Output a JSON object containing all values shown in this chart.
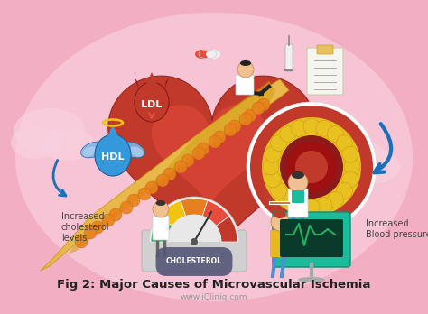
{
  "title": "Fig 2: Major Causes of Microvascular Ischemia",
  "subtitle": "www.iCliniq.com",
  "bg_color": "#f2afc4",
  "card_color": "#f7c8d8",
  "title_color": "#222222",
  "subtitle_color": "#999999",
  "left_label_line1": "Increased",
  "left_label_line2": "cholesterol",
  "left_label_line3": "levels",
  "right_label_line1": "Increased",
  "right_label_line2": "Blood pressure",
  "ldl_label": "LDL",
  "hdl_label": "HDL",
  "cholesterol_label": "CHOLESTEROL",
  "heart_color": "#c0392b",
  "heart_dark": "#922b21",
  "ldl_color": "#c0392b",
  "hdl_color": "#3498db",
  "artery_outer": "#e8b84b",
  "artery_inner": "#d4a017",
  "plaque_color": "#e8821a",
  "cross_section_outer": "#ffffff",
  "cross_section_ring": "#3a3a3a",
  "cross_section_plaque": "#e8c020",
  "blue_arrow_color": "#1a6fba",
  "gauge_green": "#27ae60",
  "gauge_yellow": "#f1c40f",
  "gauge_orange": "#e67e22",
  "gauge_red": "#e74c3c",
  "gauge_darkred": "#c0392b",
  "ecg_color": "#27ae60",
  "doctor_coat": "#ffffff",
  "doctor_skin": "#f0c090",
  "doctor_teal": "#1abc9c",
  "monitor_color": "#1abc9c"
}
